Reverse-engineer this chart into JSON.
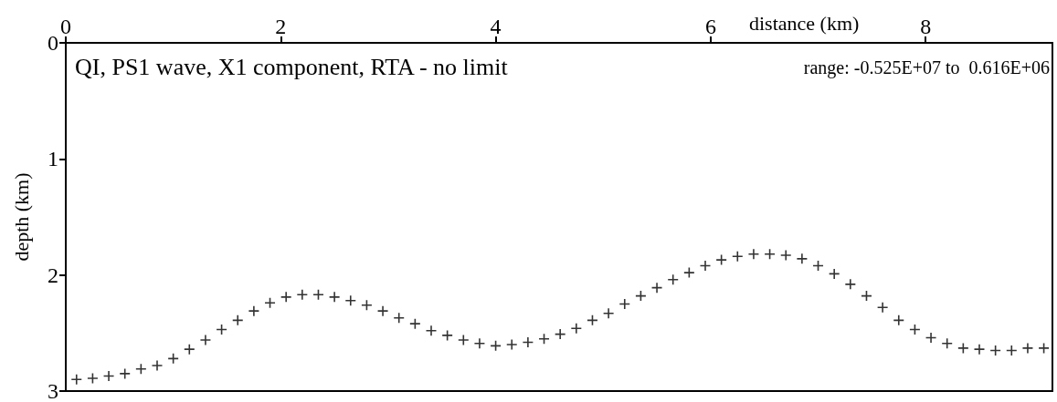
{
  "chart_data": {
    "type": "scatter",
    "xlabel": "distance (km)",
    "ylabel": "depth (km)",
    "annotations": [
      "QI, PS1 wave, X1 component, RTA - no limit",
      "range: -0.525E+07 to  0.616E+06"
    ],
    "xlim": [
      0,
      9.18
    ],
    "xticks": [
      0,
      2,
      4,
      6,
      8
    ],
    "ylim": [
      3,
      0
    ],
    "yticks": [
      0,
      1,
      2,
      3
    ],
    "marker": "cross",
    "x": [
      0.1,
      0.25,
      0.4,
      0.55,
      0.7,
      0.85,
      1.0,
      1.15,
      1.3,
      1.45,
      1.6,
      1.75,
      1.9,
      2.05,
      2.2,
      2.35,
      2.5,
      2.65,
      2.8,
      2.95,
      3.1,
      3.25,
      3.4,
      3.55,
      3.7,
      3.85,
      4.0,
      4.15,
      4.3,
      4.45,
      4.6,
      4.75,
      4.9,
      5.05,
      5.2,
      5.35,
      5.5,
      5.65,
      5.8,
      5.95,
      6.1,
      6.25,
      6.4,
      6.55,
      6.7,
      6.85,
      7.0,
      7.15,
      7.3,
      7.45,
      7.6,
      7.75,
      7.9,
      8.05,
      8.2,
      8.35,
      8.5,
      8.65,
      8.8,
      8.95,
      9.1
    ],
    "series": [
      {
        "color": "#000000",
        "values": [
          2.9,
          2.89,
          2.87,
          2.85,
          2.81,
          2.78,
          2.72,
          2.64,
          2.56,
          2.47,
          2.39,
          2.31,
          2.24,
          2.19,
          2.17,
          2.17,
          2.19,
          2.22,
          2.26,
          2.31,
          2.37,
          2.42,
          2.48,
          2.52,
          2.56,
          2.59,
          2.61,
          2.6,
          2.58,
          2.55,
          2.51,
          2.46,
          2.39,
          2.33,
          2.25,
          2.18,
          2.11,
          2.04,
          1.98,
          1.92,
          1.87,
          1.84,
          1.82,
          1.82,
          1.83,
          1.86,
          1.92,
          1.99,
          2.08,
          2.18,
          2.28,
          2.39,
          2.47,
          2.54,
          2.59,
          2.63,
          2.64,
          2.65,
          2.65,
          2.63,
          2.63
        ]
      }
    ]
  }
}
